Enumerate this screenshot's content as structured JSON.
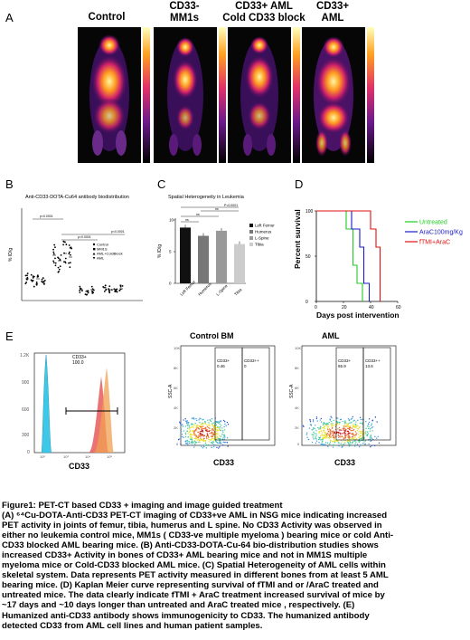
{
  "panel_a": {
    "letter": "A",
    "titles": [
      "Control",
      "CD33-\nMM1s",
      "CD33+ AML\nCold CD33 block",
      "CD33+\nAML"
    ]
  },
  "panel_b": {
    "letter": "B",
    "title": "Anti-CD33-DOTA-Cu64 antibody biodistribution",
    "ylabel": "% ID/g",
    "legend": [
      "Control",
      "MM1S",
      "AML+ColdBlock",
      "AML"
    ],
    "pvals": [
      "p<0.0001",
      "p<0.0001",
      "p<0.0001"
    ]
  },
  "panel_c": {
    "letter": "C",
    "title": "Spatial Heterogeneity in Leukemia",
    "ylabel": "% ID/g",
    "legend": [
      "Left Femur",
      "Humerus",
      "L-Spine",
      "Tibia"
    ],
    "categories": [
      "Left Femur",
      "Humerus",
      "L-Spine",
      "Tibia"
    ],
    "sig": [
      "ns",
      "ns",
      "ns",
      "P<0.0001"
    ]
  },
  "panel_d": {
    "letter": "D",
    "ylabel": "Percent survival",
    "xlabel": "Days post intervention",
    "legend": [
      "Untreated",
      "AraC100mg/Kg",
      "fTMI+AraC"
    ],
    "colors": [
      "#22cc22",
      "#1a1acc",
      "#e01010"
    ]
  },
  "panel_e": {
    "letter": "E",
    "hist_xlabel": "CD33",
    "hist_gate_label": "CD33+",
    "hist_gate_value": "100.0",
    "control_title": "Control BM",
    "aml_title": "AML",
    "control_gates": [
      {
        "label": "CD33+",
        "value": "0.46"
      },
      {
        "label": "CD33++",
        "value": "0"
      }
    ],
    "aml_gates": [
      {
        "label": "CD33+",
        "value": "65.9"
      },
      {
        "label": "CD33++",
        "value": "13.6"
      }
    ],
    "scatter_xlabel": "CD33",
    "scatter_ylabel": "SSC-A"
  },
  "chart_data": [
    {
      "type": "bar",
      "title": "Spatial Heterogeneity in Leukemia",
      "categories": [
        "Left Femur",
        "Humerus",
        "L-Spine",
        "Tibia"
      ],
      "values": [
        8.8,
        7.5,
        8.3,
        6.2
      ],
      "ylabel": "% ID/g",
      "ylim": [
        0,
        10
      ],
      "colors": [
        "#111111",
        "#777777",
        "#999999",
        "#cccccc"
      ]
    },
    {
      "type": "line",
      "xlabel": "Days post intervention",
      "ylabel": "Percent survival",
      "xlim": [
        0,
        60
      ],
      "ylim": [
        0,
        100
      ],
      "series": [
        {
          "name": "Untreated",
          "x": [
            0,
            22,
            22,
            27,
            27,
            30,
            30,
            34,
            34
          ],
          "y": [
            100,
            100,
            80,
            80,
            40,
            40,
            20,
            20,
            0
          ]
        },
        {
          "name": "AraC100mg/Kg",
          "x": [
            0,
            26,
            26,
            32,
            32,
            35,
            35,
            39,
            39
          ],
          "y": [
            100,
            100,
            80,
            80,
            60,
            60,
            20,
            20,
            0
          ]
        },
        {
          "name": "fTMI+AraC",
          "x": [
            0,
            40,
            40,
            44,
            44,
            47,
            47
          ],
          "y": [
            100,
            100,
            80,
            80,
            60,
            60,
            0
          ]
        }
      ]
    }
  ],
  "caption": {
    "title": "Figure1: PET-CT based CD33 + imaging and image guided treatment",
    "lines": [
      "(A) ⁶⁴Cu-DOTA-Anti-CD33 PET-CT imaging of  CD33+ve AML in NSG mice indicating increased",
      "PET activity in joints of femur, tibia, humerus and L spine. No CD33 Activity was observed in",
      "either no leukemia control mice, MM1s ( CD33-ve multiple myeloma ) bearing mice or cold  Anti-",
      "CD33  blocked AML  bearing mice. (B) Anti-CD33-DOTA-Cu-64 bio-distribution studies shows",
      "increased CD33+ Activity in bones of CD33+ AML bearing mice and not in MM1S multiple",
      "myeloma mice  or Cold-CD33 blocked AML mice. (C) Spatial Heterogeneity of AML cells within",
      "skeletal system.  Data represents PET activity measured in different bones from at least 5 AML",
      "bearing mice.  (D) Kaplan Meier curve representing survival of fTMI and or /AraC treated and",
      "untreated mice.  The data clearly indicate fTMI + AraC treatment increased survival of mice by",
      "~17 days and ~10 days  longer than untreated and AraC treated mice , respectively. (E)",
      "Humanized anti-CD33 antibody shows immunogenicity to CD33. The humanized antibody",
      "detected CD33 from AML cell lines and human patient samples."
    ]
  }
}
